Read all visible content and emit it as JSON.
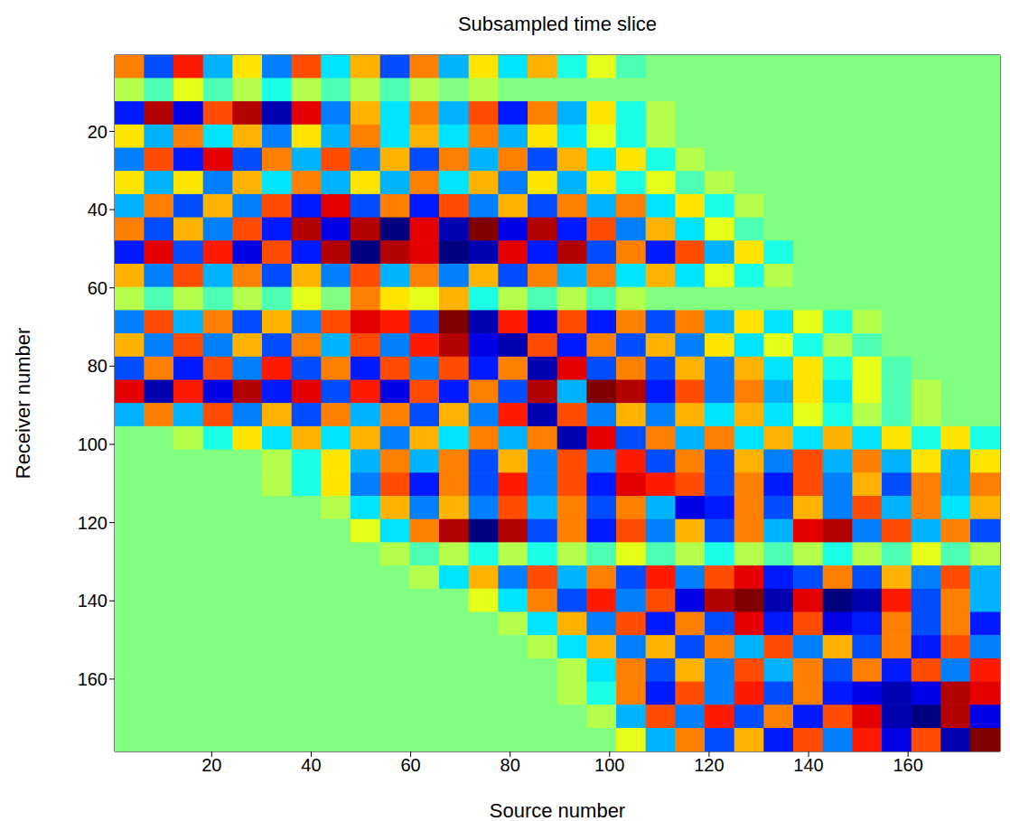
{
  "chart_data": {
    "type": "heatmap",
    "title": "Subsampled time slice",
    "x_label": "Source number",
    "y_label": "Receiver number",
    "xlim": [
      0.5,
      178.5
    ],
    "ylim": [
      0.5,
      178.5
    ],
    "xticks": [
      20,
      40,
      60,
      80,
      100,
      120,
      140,
      160
    ],
    "yticks": [
      20,
      40,
      60,
      80,
      100,
      120,
      140,
      160
    ],
    "clim": [
      -1,
      1
    ],
    "color": "jet",
    "cells": [
      [
        0.5,
        -0.6,
        0.7,
        -0.4,
        0.3,
        -0.5,
        0.6,
        -0.3,
        0.4,
        -0.6,
        0.5,
        -0.4,
        0.3,
        -0.3,
        0.4,
        -0.2,
        0.2,
        -0.1,
        0,
        0,
        0,
        0,
        0,
        0,
        0,
        0,
        0,
        0,
        0,
        0
      ],
      [
        0.1,
        -0.1,
        0.2,
        -0.1,
        0.1,
        -0.2,
        0.1,
        -0.1,
        0.1,
        -0.1,
        0.1,
        0,
        0.1,
        0,
        0,
        0,
        0,
        0,
        0,
        0,
        0,
        0,
        0,
        0,
        0,
        0,
        0,
        0,
        0,
        0
      ],
      [
        -0.7,
        0.9,
        -0.8,
        0.6,
        0.9,
        -0.9,
        0.8,
        -0.5,
        0.4,
        -0.3,
        0.5,
        -0.4,
        0.6,
        -0.7,
        0.5,
        -0.4,
        0.3,
        -0.2,
        0.1,
        0,
        0,
        0,
        0,
        0,
        0,
        0,
        0,
        0,
        0,
        0
      ],
      [
        0.3,
        -0.4,
        0.5,
        -0.3,
        0.4,
        -0.5,
        0.3,
        -0.4,
        0.5,
        -0.3,
        0.4,
        -0.3,
        0.5,
        -0.4,
        0.3,
        -0.3,
        0.2,
        -0.2,
        0.1,
        0,
        0,
        0,
        0,
        0,
        0,
        0,
        0,
        0,
        0,
        0
      ],
      [
        -0.5,
        0.6,
        -0.7,
        0.8,
        -0.6,
        0.5,
        -0.4,
        0.6,
        -0.5,
        0.4,
        -0.6,
        0.5,
        -0.4,
        0.5,
        -0.6,
        0.4,
        -0.3,
        0.3,
        -0.2,
        0.1,
        0,
        0,
        0,
        0,
        0,
        0,
        0,
        0,
        0,
        0
      ],
      [
        0.3,
        -0.4,
        0.3,
        -0.5,
        0.4,
        -0.3,
        0.5,
        -0.4,
        0.3,
        -0.4,
        0.5,
        -0.3,
        0.4,
        -0.5,
        0.3,
        -0.4,
        0.3,
        -0.2,
        0.2,
        -0.1,
        0.1,
        0,
        0,
        0,
        0,
        0,
        0,
        0,
        0,
        0
      ],
      [
        -0.4,
        0.5,
        -0.6,
        0.4,
        -0.5,
        0.6,
        -0.7,
        0.8,
        -0.6,
        0.5,
        -0.7,
        0.6,
        -0.5,
        0.4,
        -0.6,
        0.5,
        -0.4,
        0.5,
        -0.3,
        0.3,
        -0.2,
        0.1,
        0,
        0,
        0,
        0,
        0,
        0,
        0,
        0
      ],
      [
        0.5,
        -0.6,
        0.4,
        -0.5,
        0.6,
        -0.7,
        0.9,
        -0.8,
        0.9,
        -1,
        0.8,
        -0.9,
        1,
        -0.8,
        0.9,
        -0.7,
        0.6,
        -0.5,
        0.4,
        -0.3,
        0.2,
        -0.1,
        0,
        0,
        0,
        0,
        0,
        0,
        0,
        0
      ],
      [
        -0.7,
        0.8,
        -0.6,
        0.7,
        -0.8,
        0.6,
        -0.7,
        0.9,
        -1,
        0.9,
        0.8,
        -1,
        -0.9,
        0.8,
        -0.7,
        0.9,
        -0.6,
        0.5,
        -0.7,
        0.6,
        -0.4,
        0.3,
        -0.2,
        0,
        0,
        0,
        0,
        0,
        0,
        0
      ],
      [
        0.4,
        -0.5,
        0.6,
        -0.4,
        0.5,
        -0.6,
        0.4,
        -0.5,
        0.6,
        -0.4,
        0.5,
        -0.5,
        0.4,
        -0.6,
        0.5,
        -0.4,
        0.5,
        -0.3,
        0.4,
        -0.3,
        0.2,
        -0.2,
        0.1,
        0,
        0,
        0,
        0,
        0,
        0,
        0
      ],
      [
        0.1,
        -0.1,
        0.1,
        -0.1,
        0.1,
        -0.1,
        0.2,
        0,
        0.5,
        0.3,
        0.2,
        0.4,
        -0.2,
        0.1,
        -0.1,
        0.1,
        -0.1,
        0.1,
        0,
        0,
        0,
        0,
        0,
        0,
        0,
        0,
        0,
        0,
        0,
        0
      ],
      [
        -0.5,
        0.6,
        -0.4,
        0.5,
        -0.6,
        0.4,
        -0.5,
        0.6,
        0.8,
        0.7,
        -0.6,
        1,
        -0.9,
        0.7,
        -0.8,
        0.6,
        -0.7,
        0.5,
        -0.6,
        0.5,
        -0.4,
        0.3,
        -0.3,
        0.2,
        -0.2,
        0.1,
        0,
        0,
        0,
        0
      ],
      [
        0.4,
        -0.5,
        0.6,
        -0.5,
        0.4,
        -0.6,
        0.5,
        -0.4,
        0.6,
        -0.5,
        0.7,
        0.9,
        -0.8,
        -0.9,
        0.6,
        -0.7,
        0.5,
        -0.6,
        0.4,
        -0.5,
        0.3,
        -0.3,
        0.2,
        -0.2,
        0.1,
        -0.1,
        0,
        0,
        0,
        0
      ],
      [
        -0.6,
        0.5,
        -0.7,
        0.6,
        -0.5,
        0.7,
        -0.6,
        0.5,
        -0.7,
        0.6,
        -0.5,
        0.6,
        -0.7,
        0.5,
        -0.9,
        0.8,
        -0.6,
        0.5,
        -0.6,
        0.4,
        -0.5,
        0.4,
        -0.3,
        0.3,
        -0.2,
        0.2,
        -0.1,
        0,
        0,
        0
      ],
      [
        0.8,
        -0.9,
        0.7,
        -0.8,
        0.9,
        -0.7,
        0.8,
        -0.6,
        0.7,
        -0.8,
        0.6,
        -0.7,
        0.5,
        -0.6,
        0.9,
        -0.4,
        1,
        0.9,
        -0.7,
        0.6,
        -0.5,
        0.5,
        -0.4,
        0.3,
        -0.3,
        0.2,
        -0.1,
        0.1,
        0,
        0
      ],
      [
        -0.4,
        0.5,
        -0.4,
        0.6,
        -0.5,
        0.4,
        -0.6,
        0.5,
        -0.4,
        0.5,
        -0.6,
        0.4,
        -0.5,
        0.7,
        -0.9,
        0.6,
        -0.5,
        0.4,
        -0.5,
        0.4,
        -0.3,
        0.4,
        -0.3,
        0.2,
        -0.2,
        0.1,
        -0.1,
        0.1,
        0,
        0
      ],
      [
        0,
        0,
        0.1,
        -0.2,
        0.3,
        -0.3,
        0.4,
        -0.3,
        0.4,
        -0.5,
        0.4,
        -0.3,
        0.5,
        -0.4,
        0.5,
        -0.9,
        0.8,
        -0.6,
        0.5,
        -0.4,
        0.5,
        -0.3,
        0.4,
        -0.3,
        0.4,
        -0.3,
        0.3,
        -0.2,
        0.3,
        -0.2
      ],
      [
        0,
        0,
        0,
        0,
        0,
        0.1,
        -0.2,
        0.3,
        -0.4,
        0.5,
        -0.4,
        0.5,
        -0.6,
        0.4,
        -0.5,
        0.6,
        -0.5,
        0.7,
        -0.6,
        0.5,
        -0.6,
        0.4,
        -0.5,
        0.6,
        -0.4,
        0.5,
        -0.4,
        0.3,
        -0.4,
        0.3
      ],
      [
        0,
        0,
        0,
        0,
        0,
        0.1,
        -0.2,
        0.3,
        -0.5,
        0.6,
        -0.7,
        0.5,
        -0.6,
        0.7,
        -0.5,
        0.6,
        -0.7,
        0.8,
        0.7,
        0.6,
        -0.6,
        0.5,
        -0.7,
        0.6,
        -0.5,
        0.4,
        -0.6,
        0.5,
        -0.4,
        0.5
      ],
      [
        0,
        0,
        0,
        0,
        0,
        0,
        0,
        0.1,
        -0.3,
        0.4,
        -0.5,
        0.4,
        -0.5,
        0.6,
        -0.4,
        0.5,
        -0.6,
        0.5,
        -0.4,
        -0.8,
        -0.7,
        0.5,
        -0.6,
        0.4,
        -0.5,
        0.6,
        -0.4,
        0.5,
        -0.3,
        0.4
      ],
      [
        0,
        0,
        0,
        0,
        0,
        0,
        0,
        0,
        0.2,
        -0.3,
        0.5,
        0.9,
        -1,
        0.9,
        -0.6,
        0.5,
        -0.7,
        0.6,
        -0.5,
        0.4,
        -0.6,
        0.5,
        -0.4,
        0.8,
        0.9,
        -0.5,
        0.6,
        -0.4,
        0.5,
        -0.6
      ],
      [
        0,
        0,
        0,
        0,
        0,
        0,
        0,
        0,
        0,
        0.1,
        -0.1,
        0.1,
        -0.2,
        0.1,
        -0.2,
        0.1,
        -0.1,
        0.2,
        -0.1,
        0.1,
        -0.2,
        0.1,
        -0.1,
        0.1,
        -0.2,
        0.1,
        -0.1,
        0.2,
        -0.1,
        0.1
      ],
      [
        0,
        0,
        0,
        0,
        0,
        0,
        0,
        0,
        0,
        0,
        0.1,
        -0.3,
        0.4,
        -0.5,
        0.6,
        -0.4,
        0.5,
        -0.6,
        0.7,
        -0.5,
        0.6,
        0.8,
        -0.7,
        -0.6,
        0.5,
        -0.6,
        0.4,
        -0.5,
        0.6,
        -0.4
      ],
      [
        0,
        0,
        0,
        0,
        0,
        0,
        0,
        0,
        0,
        0,
        0,
        0,
        0.2,
        -0.3,
        0.5,
        -0.6,
        0.7,
        -0.5,
        0.6,
        -0.8,
        0.9,
        1,
        -0.9,
        0.8,
        -1,
        -0.9,
        0.7,
        -0.6,
        0.5,
        -0.4
      ],
      [
        0,
        0,
        0,
        0,
        0,
        0,
        0,
        0,
        0,
        0,
        0,
        0,
        0,
        0.1,
        -0.3,
        0.4,
        -0.5,
        0.6,
        -0.7,
        0.5,
        -0.6,
        0.8,
        -0.7,
        0.6,
        -0.8,
        -0.7,
        0.5,
        -0.6,
        0.5,
        -0.7
      ],
      [
        0,
        0,
        0,
        0,
        0,
        0,
        0,
        0,
        0,
        0,
        0,
        0,
        0,
        0,
        0.1,
        -0.3,
        0.4,
        -0.5,
        0.4,
        -0.6,
        0.5,
        -0.4,
        0.6,
        -0.5,
        0.4,
        -0.6,
        0.5,
        -0.7,
        0.6,
        -0.5
      ],
      [
        0,
        0,
        0,
        0,
        0,
        0,
        0,
        0,
        0,
        0,
        0,
        0,
        0,
        0,
        0,
        0.1,
        -0.3,
        0.5,
        -0.6,
        0.4,
        -0.5,
        0.6,
        -0.4,
        0.5,
        -0.6,
        0.5,
        -0.7,
        0.6,
        -0.5,
        0.7
      ],
      [
        0,
        0,
        0,
        0,
        0,
        0,
        0,
        0,
        0,
        0,
        0,
        0,
        0,
        0,
        0,
        0.1,
        -0.2,
        0.5,
        -0.7,
        0.6,
        -0.5,
        0.7,
        -0.6,
        0.5,
        -0.7,
        -0.8,
        -0.9,
        -0.8,
        0.9,
        0.8
      ],
      [
        0,
        0,
        0,
        0,
        0,
        0,
        0,
        0,
        0,
        0,
        0,
        0,
        0,
        0,
        0,
        0,
        0.1,
        -0.4,
        0.6,
        -0.5,
        0.7,
        -0.6,
        0.5,
        -0.7,
        0.6,
        0.8,
        -0.9,
        -1,
        0.9,
        -0.8
      ],
      [
        0,
        0,
        0,
        0,
        0,
        0,
        0,
        0,
        0,
        0,
        0,
        0,
        0,
        0,
        0,
        0,
        0,
        0.2,
        -0.4,
        0.5,
        -0.6,
        0.4,
        -0.7,
        0.6,
        -0.5,
        0.7,
        -0.8,
        0.6,
        -0.9,
        1
      ]
    ]
  }
}
